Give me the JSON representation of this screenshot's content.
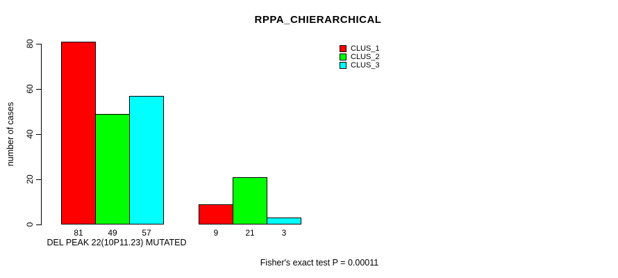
{
  "chart_data": {
    "type": "bar",
    "title": "RPPA_CHIERARCHICAL",
    "ylabel": "number of cases",
    "xlabel": "DEL PEAK 22(10P11.23) MUTATED",
    "annotation": "Fisher's exact test P = 0.00011",
    "ylim": [
      0,
      80
    ],
    "yticks": [
      0,
      20,
      40,
      60,
      80
    ],
    "grid": false,
    "legend_position": "top-right",
    "bar_border_color": "#000000",
    "background_color": "#ffffff",
    "groups": [
      {
        "label": "DEL PEAK 22(10P11.23) MUTATED"
      },
      {
        "label": ""
      }
    ],
    "series": [
      {
        "name": "CLUS_1",
        "color": "#ff0000",
        "values": [
          81,
          9
        ]
      },
      {
        "name": "CLUS_2",
        "color": "#00ff00",
        "values": [
          49,
          21
        ]
      },
      {
        "name": "CLUS_3",
        "color": "#00ffff",
        "values": [
          57,
          3
        ]
      }
    ],
    "value_labels": [
      [
        81,
        49,
        57
      ],
      [
        9,
        21,
        3
      ]
    ]
  }
}
